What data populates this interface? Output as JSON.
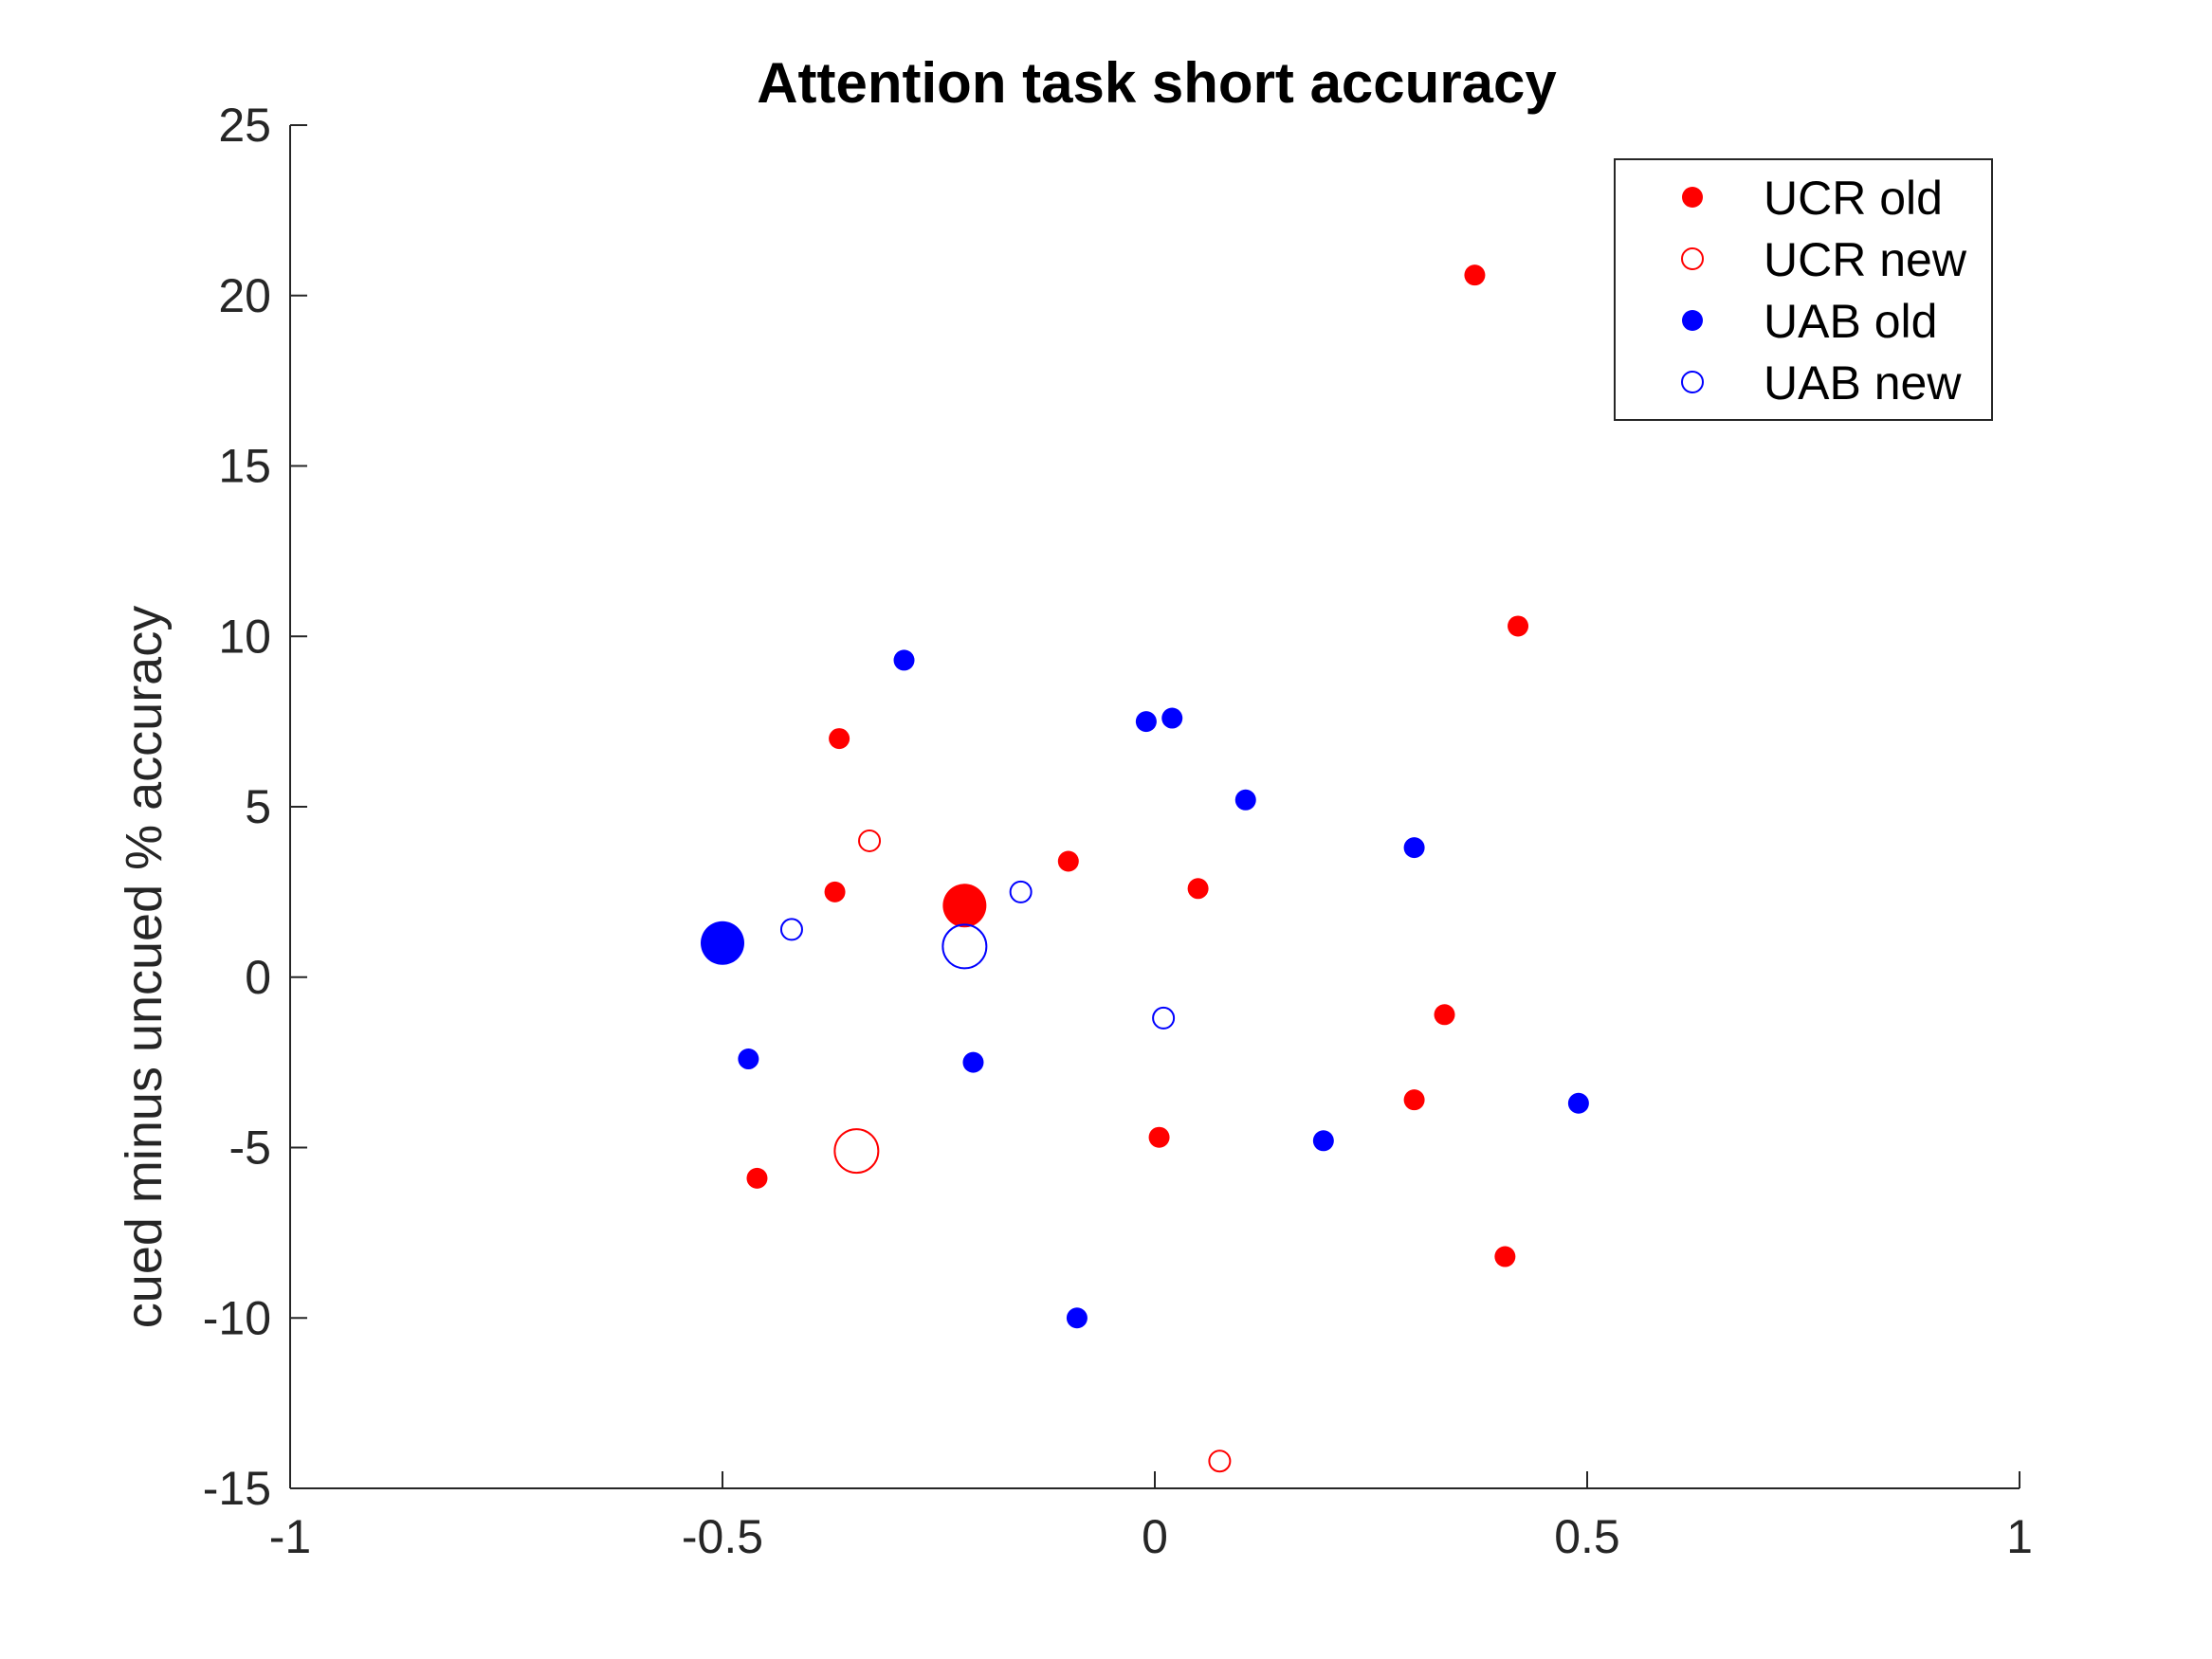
{
  "chart_data": {
    "type": "scatter",
    "title": "Attention task short accuracy",
    "xlabel": "",
    "ylabel": "cued minus uncued % accuracy",
    "xlim": [
      -1,
      1
    ],
    "ylim": [
      -15,
      25
    ],
    "xticks": [
      -1,
      -0.5,
      0,
      0.5,
      1
    ],
    "xtick_labels": [
      "-1",
      "-0.5",
      "0",
      "0.5",
      "1"
    ],
    "yticks": [
      -15,
      -10,
      -5,
      0,
      5,
      10,
      15,
      20,
      25
    ],
    "ytick_labels": [
      "-15",
      "-10",
      "-5",
      "0",
      "5",
      "10",
      "15",
      "20",
      "25"
    ],
    "grid": false,
    "box": "left-bottom",
    "legend": {
      "position": "top-right"
    },
    "series": [
      {
        "name": "UCR old",
        "color": "#ff0000",
        "marker": "filled-circle",
        "points": [
          {
            "x": 0.37,
            "y": 20.6,
            "size": "small"
          },
          {
            "x": 0.42,
            "y": 10.3,
            "size": "small"
          },
          {
            "x": -0.365,
            "y": 7.0,
            "size": "small"
          },
          {
            "x": -0.37,
            "y": 2.5,
            "size": "small"
          },
          {
            "x": -0.1,
            "y": 3.4,
            "size": "small"
          },
          {
            "x": 0.05,
            "y": 2.6,
            "size": "small"
          },
          {
            "x": -0.22,
            "y": 2.1,
            "size": "large"
          },
          {
            "x": 0.335,
            "y": -1.1,
            "size": "small"
          },
          {
            "x": 0.3,
            "y": -3.6,
            "size": "small"
          },
          {
            "x": 0.005,
            "y": -4.7,
            "size": "small"
          },
          {
            "x": -0.46,
            "y": -5.9,
            "size": "small"
          },
          {
            "x": 0.405,
            "y": -8.2,
            "size": "small"
          }
        ]
      },
      {
        "name": "UCR new",
        "color": "#ff0000",
        "marker": "open-circle",
        "points": [
          {
            "x": -0.33,
            "y": 4.0,
            "size": "small"
          },
          {
            "x": -0.345,
            "y": -5.1,
            "size": "large"
          },
          {
            "x": 0.075,
            "y": -14.2,
            "size": "small"
          }
        ]
      },
      {
        "name": "UAB old",
        "color": "#0000ff",
        "marker": "filled-circle",
        "points": [
          {
            "x": -0.29,
            "y": 9.3,
            "size": "small"
          },
          {
            "x": -0.01,
            "y": 7.5,
            "size": "small"
          },
          {
            "x": 0.02,
            "y": 7.6,
            "size": "small"
          },
          {
            "x": 0.105,
            "y": 5.2,
            "size": "small"
          },
          {
            "x": 0.3,
            "y": 3.8,
            "size": "small"
          },
          {
            "x": -0.5,
            "y": 1.0,
            "size": "large"
          },
          {
            "x": -0.47,
            "y": -2.4,
            "size": "small"
          },
          {
            "x": -0.21,
            "y": -2.5,
            "size": "small"
          },
          {
            "x": 0.195,
            "y": -4.8,
            "size": "small"
          },
          {
            "x": 0.49,
            "y": -3.7,
            "size": "small"
          },
          {
            "x": -0.09,
            "y": -10.0,
            "size": "small"
          }
        ]
      },
      {
        "name": "UAB new",
        "color": "#0000ff",
        "marker": "open-circle",
        "points": [
          {
            "x": -0.42,
            "y": 1.4,
            "size": "small"
          },
          {
            "x": -0.155,
            "y": 2.5,
            "size": "small"
          },
          {
            "x": -0.22,
            "y": 0.9,
            "size": "large"
          },
          {
            "x": 0.01,
            "y": -1.2,
            "size": "small"
          }
        ]
      }
    ]
  }
}
